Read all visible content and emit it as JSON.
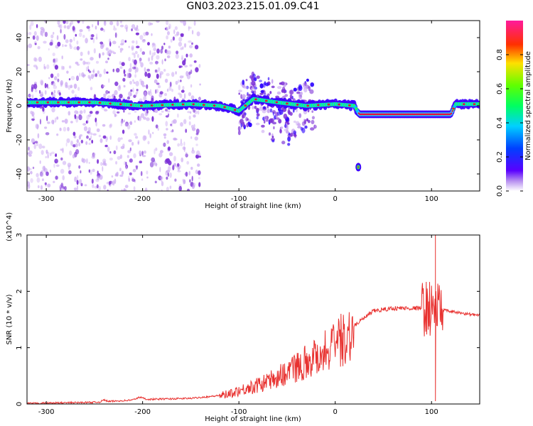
{
  "title": "GN03.2023.215.01.09.C41",
  "colors": {
    "snr_line": "#e8312f",
    "spectrogram_dots": "#7b2fd6",
    "band_edge": "#3c00ff",
    "band_core": "#e8103a"
  },
  "chart_data": [
    {
      "type": "heatmap",
      "xlabel": "Height of straight line (km)",
      "ylabel": "Frequency (Hz)",
      "xlim": [
        -320,
        150
      ],
      "ylim": [
        -50,
        50
      ],
      "xticks": [
        -300,
        -200,
        -100,
        0,
        100
      ],
      "yticks": [
        -40,
        -20,
        0,
        20,
        40
      ],
      "colorbar": {
        "label": "Normalized spectral amplitude",
        "range": [
          0,
          1
        ],
        "ticks": [
          "0.0",
          "0.2",
          "0.4",
          "0.6",
          "0.8"
        ],
        "colormap": "hsv-rainbow (purple to magenta)"
      },
      "ridge": [
        {
          "x": -300,
          "freq": 2
        },
        {
          "x": -250,
          "freq": 2
        },
        {
          "x": -200,
          "freq": 0
        },
        {
          "x": -150,
          "freq": 1
        },
        {
          "x": -120,
          "freq": 0
        },
        {
          "x": -100,
          "freq": -3
        },
        {
          "x": -85,
          "freq": 4
        },
        {
          "x": -60,
          "freq": 2
        },
        {
          "x": -30,
          "freq": 0
        },
        {
          "x": 0,
          "freq": 1
        },
        {
          "x": 20,
          "freq": 0
        },
        {
          "x": 25,
          "freq": -5
        },
        {
          "x": 120,
          "freq": -5
        },
        {
          "x": 125,
          "freq": 1
        },
        {
          "x": 150,
          "freq": 1
        }
      ],
      "isolated_points": [
        {
          "x": 24,
          "freq": -36
        }
      ]
    },
    {
      "type": "line",
      "xlabel": "Height of straight line (km)",
      "ylabel": "SNR (10 * v/v)",
      "y_multiplier": "(x10^4)",
      "xlim": [
        -320,
        150
      ],
      "ylim": [
        0,
        3
      ],
      "xticks": [
        -300,
        -200,
        -100,
        0,
        100
      ],
      "yticks": [
        0,
        1,
        2,
        3
      ],
      "envelope": [
        {
          "x": -320,
          "y": 0.01
        },
        {
          "x": -250,
          "y": 0.03
        },
        {
          "x": -200,
          "y": 0.08
        },
        {
          "x": -150,
          "y": 0.1
        },
        {
          "x": -120,
          "y": 0.15
        },
        {
          "x": -100,
          "y": 0.25
        },
        {
          "x": -80,
          "y": 0.35
        },
        {
          "x": -60,
          "y": 0.5
        },
        {
          "x": -40,
          "y": 0.7
        },
        {
          "x": -20,
          "y": 0.9
        },
        {
          "x": 0,
          "y": 1.1
        },
        {
          "x": 20,
          "y": 1.4
        },
        {
          "x": 40,
          "y": 1.65
        },
        {
          "x": 60,
          "y": 1.7
        },
        {
          "x": 90,
          "y": 1.7
        },
        {
          "x": 105,
          "y": 1.7
        },
        {
          "x": 120,
          "y": 1.64
        },
        {
          "x": 150,
          "y": 1.57
        }
      ],
      "spikes": [
        {
          "x": 104,
          "y": 3.0
        },
        {
          "x": 104,
          "y": 0.05
        }
      ]
    }
  ]
}
